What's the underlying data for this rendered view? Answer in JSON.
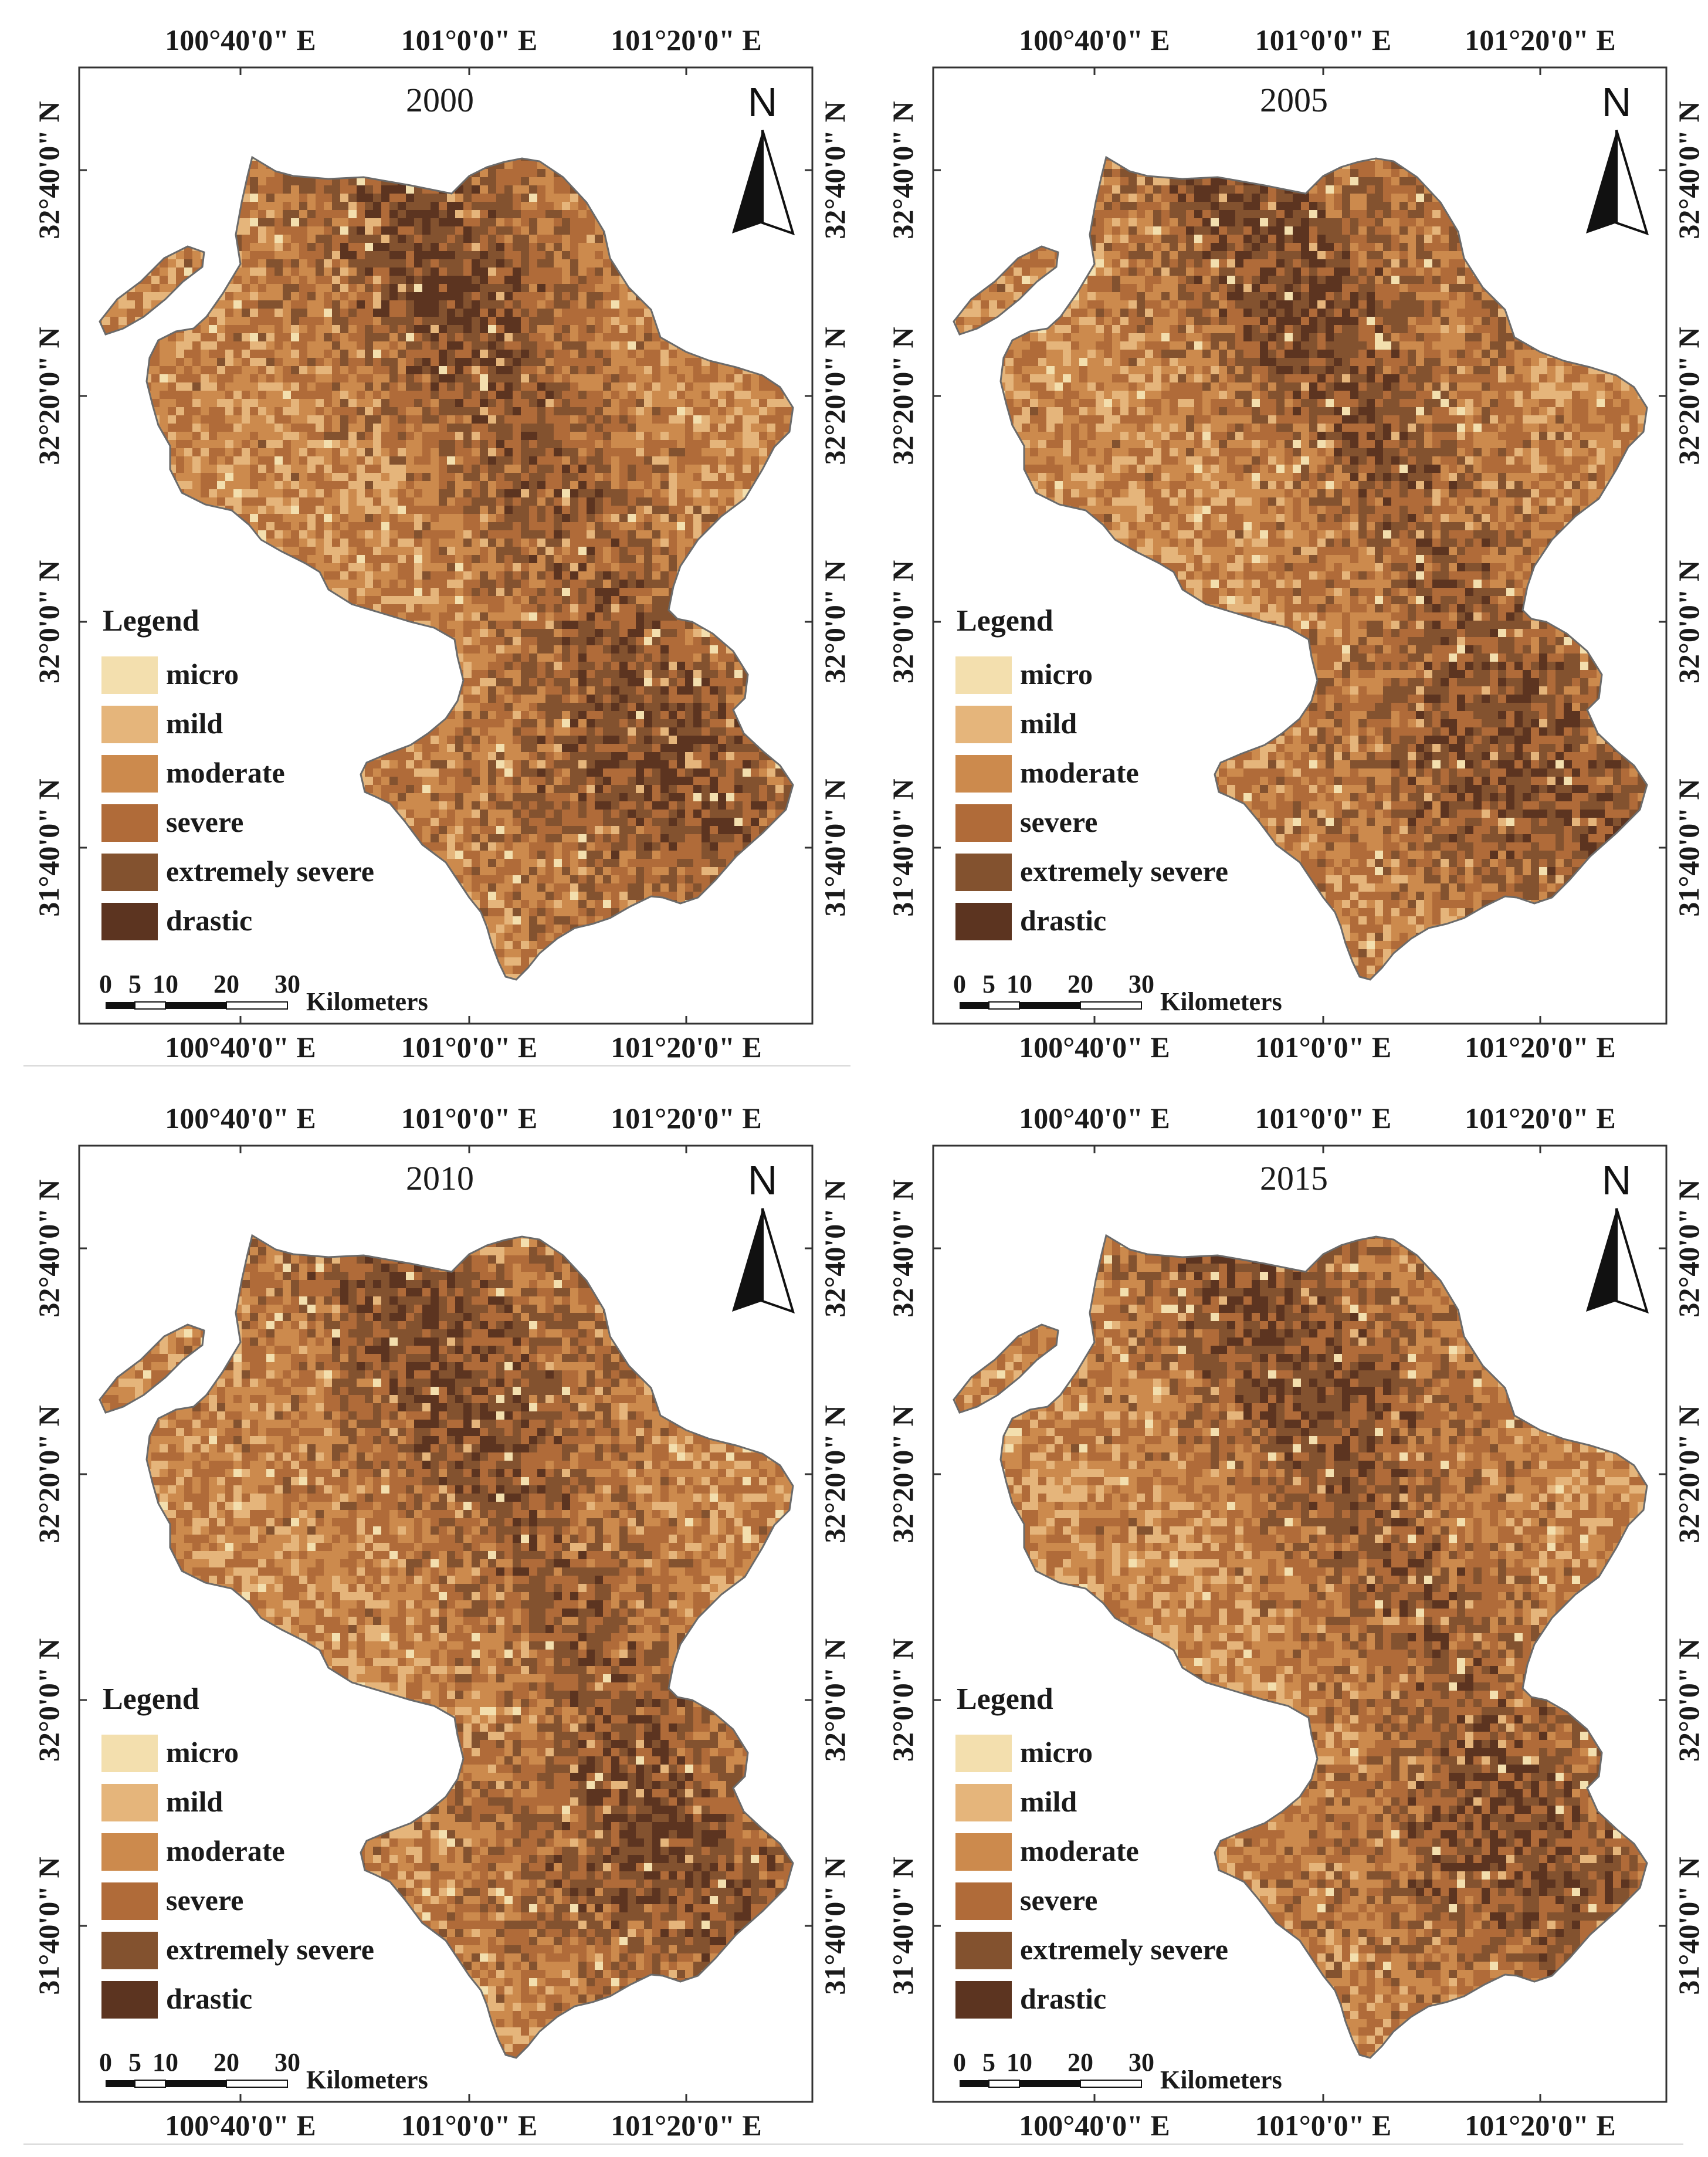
{
  "legend": {
    "title": "Legend",
    "items": [
      {
        "label": "micro",
        "color": "#f3dfae"
      },
      {
        "label": "mild",
        "color": "#e5b57b"
      },
      {
        "label": "moderate",
        "color": "#cc8a4d"
      },
      {
        "label": "severe",
        "color": "#b06b39"
      },
      {
        "label": "extremely severe",
        "color": "#83522f"
      },
      {
        "label": "drastic",
        "color": "#5c3420"
      }
    ]
  },
  "scale_bar": {
    "ticks": [
      "0",
      "5",
      "10",
      "20",
      "30"
    ],
    "unit": "Kilometers"
  },
  "north_arrow": {
    "label": "N"
  },
  "axes": {
    "longitude_labels": [
      "100°40'0\" E",
      "101°0'0\" E",
      "101°20'0\" E"
    ],
    "latitude_labels": [
      "32°40'0\" N",
      "32°20'0\" N",
      "32°0'0\" N",
      "31°40'0\" N"
    ]
  },
  "panels": [
    {
      "year": "2000"
    },
    {
      "year": "2005"
    },
    {
      "year": "2010"
    },
    {
      "year": "2015"
    }
  ]
}
